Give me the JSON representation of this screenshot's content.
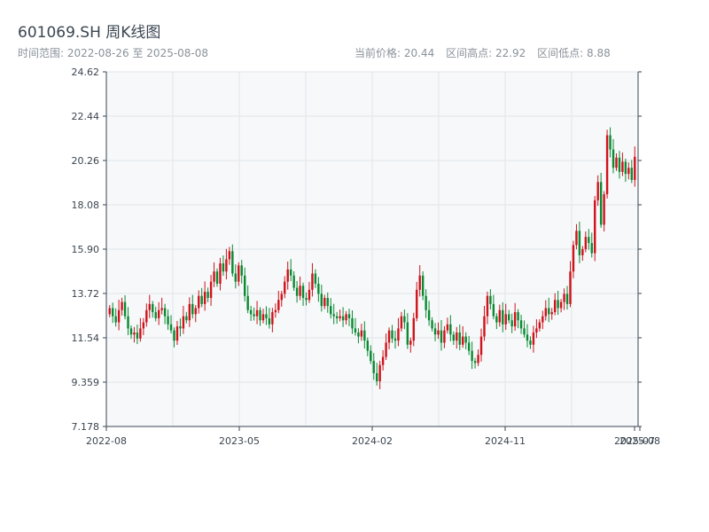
{
  "header": {
    "title": "601069.SH 周K线图",
    "range_label": "时间范围:",
    "range_start": "2022-08-26",
    "range_sep": "至",
    "range_end": "2025-08-08",
    "price_label": "当前价格:",
    "price_value": "20.44",
    "high_label": "区间高点:",
    "high_value": "22.92",
    "low_label": "区间低点:",
    "low_value": "8.88"
  },
  "chart_data": {
    "type": "candlestick",
    "ylim": [
      7.178,
      24.62
    ],
    "yticks": [
      7.178,
      9.359,
      11.54,
      13.72,
      15.9,
      18.08,
      20.26,
      22.44,
      24.62
    ],
    "ytick_labels": [
      "7.178",
      "9.359",
      "11.54",
      "13.72",
      "15.90",
      "18.08",
      "20.26",
      "22.44",
      "24.62"
    ],
    "xtick_labels": [
      "2022-08",
      "2023-05",
      "2024-02",
      "2024-11",
      "2025-07",
      "2025-08"
    ],
    "up_color": "#d0121b",
    "down_color": "#0a8a32",
    "grid": true,
    "close_series": [
      13.0,
      12.6,
      12.3,
      12.9,
      13.3,
      12.6,
      12.0,
      11.7,
      11.8,
      11.5,
      12.0,
      12.3,
      12.9,
      13.2,
      12.8,
      12.5,
      12.9,
      13.0,
      12.6,
      12.2,
      11.9,
      11.4,
      12.1,
      12.0,
      12.6,
      12.4,
      13.2,
      12.7,
      13.0,
      13.6,
      13.2,
      13.8,
      13.5,
      14.3,
      14.8,
      14.2,
      15.2,
      14.8,
      15.4,
      15.8,
      14.7,
      14.3,
      15.1,
      14.6,
      13.6,
      12.9,
      12.7,
      12.6,
      12.9,
      12.4,
      12.7,
      12.5,
      12.2,
      12.8,
      12.9,
      13.4,
      13.7,
      14.3,
      14.9,
      14.6,
      14.0,
      13.6,
      14.1,
      13.5,
      13.4,
      13.9,
      14.7,
      14.2,
      13.7,
      13.1,
      13.5,
      13.1,
      12.7,
      12.6,
      12.5,
      12.6,
      12.4,
      12.7,
      12.5,
      12.0,
      11.8,
      11.6,
      11.9,
      11.4,
      10.9,
      10.4,
      9.8,
      9.4,
      10.2,
      10.6,
      11.3,
      11.9,
      11.5,
      11.4,
      12.0,
      12.6,
      12.3,
      11.2,
      11.4,
      12.5,
      13.9,
      14.6,
      13.6,
      12.9,
      12.4,
      12.0,
      11.7,
      11.9,
      11.3,
      11.9,
      12.2,
      11.7,
      11.4,
      11.8,
      11.2,
      11.6,
      11.3,
      10.9,
      10.4,
      10.3,
      10.7,
      11.6,
      12.6,
      13.6,
      13.2,
      12.6,
      12.3,
      12.9,
      12.2,
      12.7,
      12.4,
      12.1,
      12.8,
      12.4,
      12.0,
      11.7,
      11.4,
      11.2,
      11.8,
      12.0,
      12.3,
      12.6,
      13.0,
      12.7,
      12.8,
      13.4,
      13.0,
      13.3,
      13.7,
      13.2,
      14.8,
      16.1,
      16.8,
      15.6,
      15.9,
      16.5,
      16.2,
      15.7,
      18.3,
      19.2,
      17.1,
      18.6,
      21.5,
      20.8,
      19.9,
      20.4,
      19.7,
      20.2,
      19.6,
      19.9,
      19.3,
      20.44
    ],
    "current_price": 20.44,
    "range_high": 22.92,
    "range_low": 8.88
  }
}
